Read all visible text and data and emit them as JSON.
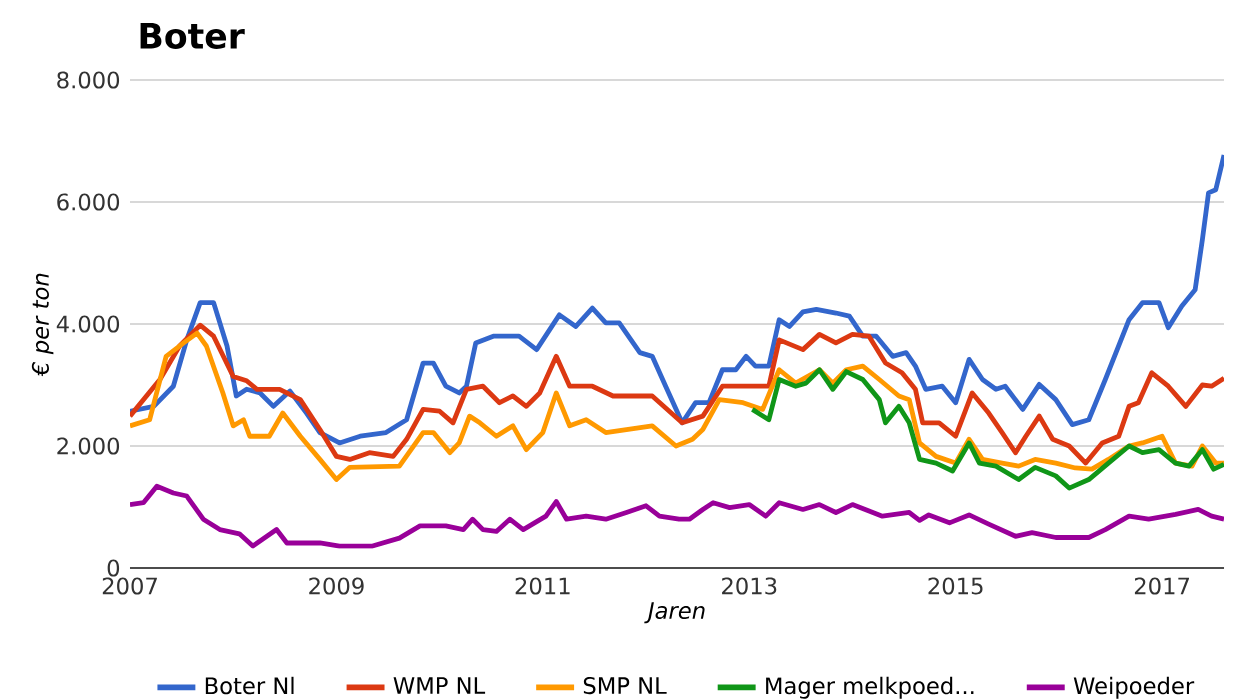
{
  "chart_data": {
    "type": "line",
    "title": "Boter",
    "xlabel": "Jaren",
    "ylabel": "€ per ton",
    "xlim": [
      2007,
      2017.6
    ],
    "xticks": [
      2007,
      2009,
      2011,
      2013,
      2015,
      2017
    ],
    "ylim": [
      0,
      8000
    ],
    "yticks": [
      {
        "value": 0,
        "label": "0"
      },
      {
        "value": 2000,
        "label": "2.000"
      },
      {
        "value": 4000,
        "label": "4.000"
      },
      {
        "value": 6000,
        "label": "6.000"
      },
      {
        "value": 8000,
        "label": "8.000"
      }
    ],
    "grid": "y",
    "legend": "bottom",
    "series": [
      {
        "name": "Boter Nl",
        "color": "#3366cc",
        "x": [
          2007.0,
          2007.23,
          2007.42,
          2007.55,
          2007.68,
          2007.81,
          2007.94,
          2008.03,
          2008.13,
          2008.26,
          2008.39,
          2008.55,
          2008.71,
          2008.84,
          2009.03,
          2009.23,
          2009.48,
          2009.68,
          2009.84,
          2009.94,
          2010.06,
          2010.19,
          2010.26,
          2010.35,
          2010.52,
          2010.77,
          2010.94,
          2011.16,
          2011.32,
          2011.48,
          2011.61,
          2011.74,
          2011.94,
          2012.06,
          2012.19,
          2012.35,
          2012.48,
          2012.61,
          2012.74,
          2012.87,
          2012.97,
          2013.06,
          2013.19,
          2013.29,
          2013.39,
          2013.52,
          2013.65,
          2013.84,
          2013.97,
          2014.1,
          2014.23,
          2014.39,
          2014.52,
          2014.61,
          2014.71,
          2014.87,
          2015.0,
          2015.13,
          2015.26,
          2015.39,
          2015.48,
          2015.65,
          2015.81,
          2015.97,
          2016.13,
          2016.29,
          2016.45,
          2016.68,
          2016.81,
          2016.97,
          2017.06,
          2017.19,
          2017.32,
          2017.39,
          2017.45,
          2017.52,
          2017.6
        ],
        "values": [
          2570,
          2650,
          2980,
          3740,
          4350,
          4350,
          3640,
          2820,
          2930,
          2870,
          2650,
          2900,
          2540,
          2220,
          2050,
          2160,
          2220,
          2430,
          3360,
          3360,
          2980,
          2870,
          2980,
          3690,
          3800,
          3800,
          3580,
          4150,
          3960,
          4260,
          4020,
          4020,
          3530,
          3470,
          2980,
          2380,
          2710,
          2710,
          3250,
          3250,
          3470,
          3310,
          3310,
          4070,
          3960,
          4200,
          4240,
          4180,
          4130,
          3800,
          3800,
          3470,
          3530,
          3310,
          2930,
          2980,
          2710,
          3420,
          3090,
          2930,
          2980,
          2600,
          3010,
          2760,
          2350,
          2430,
          3090,
          4070,
          4350,
          4350,
          3940,
          4290,
          4560,
          5380,
          6150,
          6200,
          6770
        ]
      },
      {
        "name": "WMP NL",
        "color": "#dc3912",
        "x": [
          2007.0,
          2007.29,
          2007.48,
          2007.68,
          2007.81,
          2008.0,
          2008.13,
          2008.23,
          2008.45,
          2008.65,
          2008.84,
          2009.0,
          2009.13,
          2009.32,
          2009.55,
          2009.68,
          2009.84,
          2010.0,
          2010.13,
          2010.26,
          2010.42,
          2010.58,
          2010.71,
          2010.84,
          2010.97,
          2011.13,
          2011.26,
          2011.48,
          2011.68,
          2012.06,
          2012.35,
          2012.55,
          2012.74,
          2013.19,
          2013.29,
          2013.52,
          2013.68,
          2013.84,
          2014.0,
          2014.16,
          2014.32,
          2014.48,
          2014.61,
          2014.68,
          2014.84,
          2015.0,
          2015.16,
          2015.32,
          2015.45,
          2015.58,
          2015.68,
          2015.81,
          2015.94,
          2016.1,
          2016.26,
          2016.42,
          2016.58,
          2016.68,
          2016.77,
          2016.9,
          2017.06,
          2017.23,
          2017.39,
          2017.48,
          2017.6
        ],
        "values": [
          2490,
          3090,
          3640,
          3980,
          3800,
          3140,
          3070,
          2930,
          2930,
          2760,
          2270,
          1830,
          1780,
          1890,
          1830,
          2110,
          2600,
          2570,
          2380,
          2930,
          2980,
          2710,
          2820,
          2650,
          2870,
          3470,
          2980,
          2980,
          2820,
          2820,
          2380,
          2490,
          2980,
          2980,
          3740,
          3580,
          3830,
          3690,
          3830,
          3800,
          3360,
          3200,
          2930,
          2380,
          2380,
          2160,
          2870,
          2540,
          2220,
          1890,
          2160,
          2490,
          2110,
          2000,
          1720,
          2050,
          2160,
          2650,
          2710,
          3200,
          2980,
          2650,
          3000,
          2980,
          3110
        ]
      },
      {
        "name": "SMP NL",
        "color": "#ff9900",
        "x": [
          2007.0,
          2007.19,
          2007.35,
          2007.52,
          2007.65,
          2007.74,
          2007.9,
          2008.0,
          2008.1,
          2008.16,
          2008.35,
          2008.48,
          2008.65,
          2008.84,
          2009.0,
          2009.13,
          2009.61,
          2009.84,
          2009.94,
          2010.1,
          2010.19,
          2010.29,
          2010.39,
          2010.55,
          2010.71,
          2010.84,
          2011.0,
          2011.13,
          2011.26,
          2011.42,
          2011.61,
          2012.06,
          2012.29,
          2012.45,
          2012.55,
          2012.71,
          2012.94,
          2013.13,
          2013.29,
          2013.45,
          2013.68,
          2013.81,
          2013.94,
          2014.1,
          2014.26,
          2014.45,
          2014.55,
          2014.65,
          2014.81,
          2015.0,
          2015.13,
          2015.26,
          2015.45,
          2015.61,
          2015.77,
          2015.97,
          2016.16,
          2016.32,
          2016.48,
          2016.68,
          2016.81,
          2017.0,
          2017.13,
          2017.29,
          2017.39,
          2017.52,
          2017.6
        ],
        "values": [
          2330,
          2430,
          3470,
          3690,
          3850,
          3640,
          2870,
          2330,
          2430,
          2160,
          2160,
          2540,
          2160,
          1780,
          1450,
          1650,
          1670,
          2220,
          2220,
          1890,
          2050,
          2490,
          2380,
          2160,
          2330,
          1940,
          2220,
          2870,
          2330,
          2430,
          2220,
          2330,
          2000,
          2110,
          2270,
          2760,
          2710,
          2600,
          3250,
          3030,
          3250,
          3030,
          3250,
          3310,
          3090,
          2820,
          2760,
          2050,
          1830,
          1720,
          2110,
          1780,
          1720,
          1670,
          1780,
          1720,
          1640,
          1620,
          1780,
          2000,
          2050,
          2160,
          1720,
          1670,
          2000,
          1720,
          1720
        ]
      },
      {
        "name": "Mager melkpoed...",
        "color": "#109618",
        "x": [
          2013.03,
          2013.19,
          2013.29,
          2013.45,
          2013.55,
          2013.68,
          2013.81,
          2013.94,
          2014.1,
          2014.26,
          2014.32,
          2014.45,
          2014.55,
          2014.65,
          2014.81,
          2014.97,
          2015.13,
          2015.23,
          2015.39,
          2015.61,
          2015.77,
          2015.97,
          2016.1,
          2016.29,
          2016.48,
          2016.68,
          2016.81,
          2016.97,
          2017.13,
          2017.26,
          2017.39,
          2017.5,
          2017.6
        ],
        "values": [
          2600,
          2430,
          3090,
          2980,
          3030,
          3250,
          2930,
          3220,
          3090,
          2760,
          2380,
          2650,
          2380,
          1780,
          1720,
          1590,
          2050,
          1720,
          1670,
          1450,
          1650,
          1510,
          1310,
          1450,
          1720,
          2000,
          1890,
          1940,
          1720,
          1670,
          1940,
          1620,
          1700
        ]
      },
      {
        "name": "Weipoeder",
        "color": "#990099",
        "x": [
          2007.0,
          2007.13,
          2007.26,
          2007.42,
          2007.55,
          2007.71,
          2007.87,
          2008.06,
          2008.19,
          2008.42,
          2008.52,
          2008.84,
          2009.03,
          2009.35,
          2009.61,
          2009.81,
          2010.06,
          2010.23,
          2010.32,
          2010.42,
          2010.55,
          2010.68,
          2010.81,
          2011.03,
          2011.13,
          2011.23,
          2011.42,
          2011.61,
          2011.81,
          2012.0,
          2012.13,
          2012.32,
          2012.42,
          2012.55,
          2012.65,
          2012.81,
          2013.0,
          2013.16,
          2013.29,
          2013.52,
          2013.68,
          2013.84,
          2014.0,
          2014.29,
          2014.55,
          2014.65,
          2014.74,
          2014.94,
          2015.13,
          2015.32,
          2015.58,
          2015.74,
          2015.97,
          2016.29,
          2016.45,
          2016.68,
          2016.87,
          2017.13,
          2017.35,
          2017.48,
          2017.6
        ],
        "values": [
          1040,
          1070,
          1340,
          1230,
          1180,
          800,
          630,
          560,
          360,
          630,
          410,
          410,
          360,
          360,
          490,
          690,
          690,
          630,
          800,
          630,
          600,
          800,
          630,
          850,
          1090,
          800,
          850,
          800,
          910,
          1020,
          850,
          800,
          800,
          960,
          1070,
          990,
          1040,
          850,
          1070,
          960,
          1040,
          910,
          1040,
          850,
          910,
          780,
          870,
          740,
          870,
          720,
          520,
          580,
          500,
          500,
          630,
          850,
          800,
          880,
          960,
          850,
          800
        ]
      }
    ]
  }
}
